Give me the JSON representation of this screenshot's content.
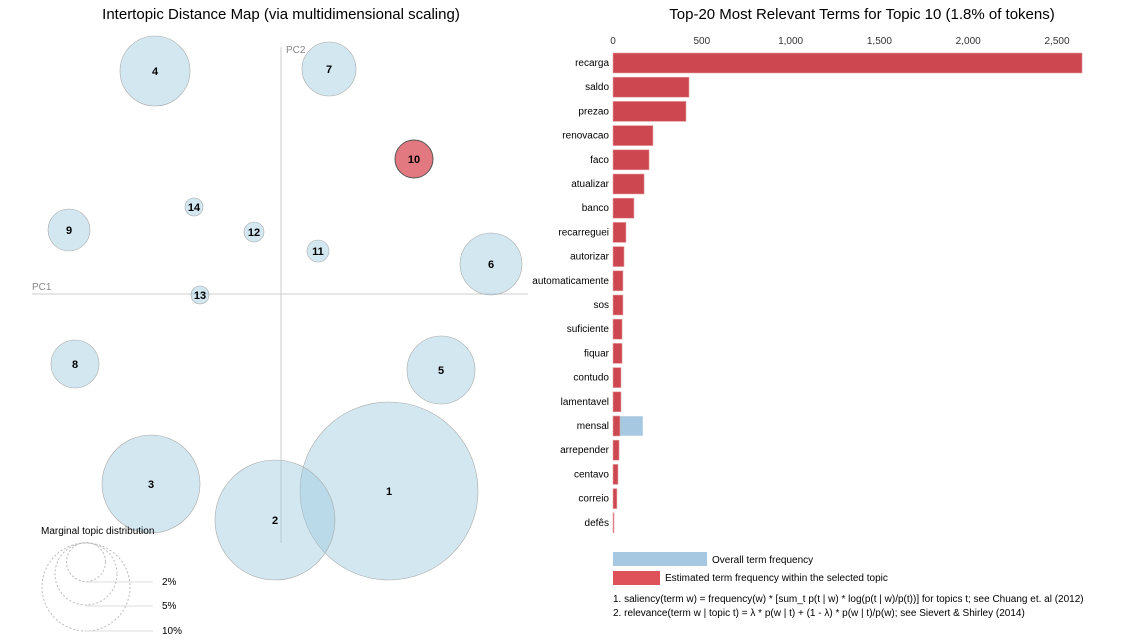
{
  "chart_data": [
    {
      "type": "scatter",
      "title": "Intertopic Distance Map (via multidimensional scaling)",
      "xlabel": "PC1",
      "ylabel": "PC2",
      "topics": [
        "1",
        "2",
        "3",
        "4",
        "5",
        "6",
        "7",
        "8",
        "9",
        "10",
        "11",
        "12",
        "13",
        "14"
      ],
      "selected_topic": "10",
      "legend": {
        "title": "Marginal topic distribution",
        "labels": [
          "2%",
          "5%",
          "10%"
        ]
      },
      "colors": {
        "bubble": "#9ecae1",
        "selected": "#d6404a"
      }
    },
    {
      "type": "bar",
      "title": "Top-20 Most Relevant Terms for Topic 10 (1.8% of tokens)",
      "ticks": [
        "0",
        "500",
        "1,000",
        "1,500",
        "2,000",
        "2,500"
      ],
      "xlim": [
        0,
        2650
      ],
      "categories": [
        "recarga",
        "saldo",
        "prezao",
        "renovacao",
        "faco",
        "atualizar",
        "banco",
        "recarreguei",
        "autorizar",
        "automaticamente",
        "sos",
        "suficiente",
        "fiquar",
        "contudo",
        "lamentavel",
        "mensal",
        "arrepender",
        "centavo",
        "correio",
        "defês"
      ],
      "series": [
        {
          "name": "Overall term frequency",
          "values": [
            2641,
            428,
            411,
            225,
            203,
            175,
            118,
            73,
            62,
            56,
            56,
            51,
            51,
            45,
            45,
            169,
            34,
            28,
            22,
            5
          ]
        },
        {
          "name": "Estimated term frequency within the selected topic",
          "values": [
            2641,
            428,
            411,
            225,
            203,
            175,
            118,
            73,
            62,
            56,
            56,
            51,
            51,
            45,
            45,
            39,
            34,
            28,
            22,
            5
          ]
        }
      ],
      "colors": {
        "overall": "#a6c8e0",
        "topic": "#cc4750"
      },
      "footnotes": [
        "1. saliency(term w) = frequency(w) * [sum_t p(t | w) * log(p(t | w)/p(t))] for topics t; see Chuang et. al (2012)",
        "2. relevance(term w | topic t) = λ * p(w | t) + (1 - λ) * p(w | t)/p(w); see Sievert & Shirley (2014)"
      ]
    }
  ]
}
